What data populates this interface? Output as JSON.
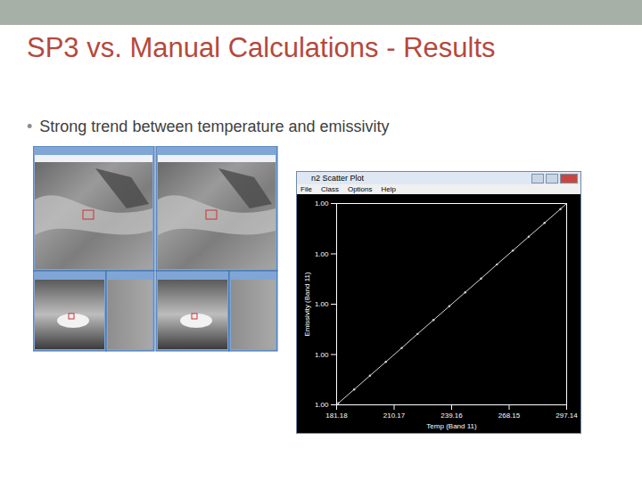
{
  "slide": {
    "title": "SP3 vs. Manual Calculations - Results",
    "bullets": [
      "Strong trend between temperature and emissivity"
    ]
  },
  "scatter_window": {
    "title": "n2 Scatter Plot",
    "menu": [
      "File",
      "Class",
      "Options",
      "Help"
    ]
  },
  "chart_data": {
    "type": "scatter",
    "xlabel": "Temp (Band 11)",
    "ylabel": "Emissivity (Band 11)",
    "x": [
      182,
      190,
      198,
      206,
      214,
      222,
      230,
      238,
      246,
      254,
      262,
      270,
      278,
      286,
      294,
      297
    ],
    "values": [
      0.99606,
      0.99661,
      0.99716,
      0.99771,
      0.99826,
      0.99882,
      0.99937,
      0.99992,
      1.00047,
      1.00102,
      1.00158,
      1.00213,
      1.00268,
      1.00323,
      1.00378,
      1.00399
    ],
    "color": "#d9d9d9",
    "xlim": [
      181.18,
      297.14
    ],
    "xticks": [
      181.18,
      210.17,
      239.16,
      268.15,
      297.14
    ],
    "ylim": [
      0.996,
      1.004
    ],
    "yticks": [
      {
        "value": 0.996,
        "label": "1.00"
      },
      {
        "value": 0.998,
        "label": "1.00"
      },
      {
        "value": 1.0,
        "label": "1.00"
      },
      {
        "value": 1.002,
        "label": "1.00"
      },
      {
        "value": 1.004,
        "label": "1.00"
      }
    ],
    "grid": false
  }
}
